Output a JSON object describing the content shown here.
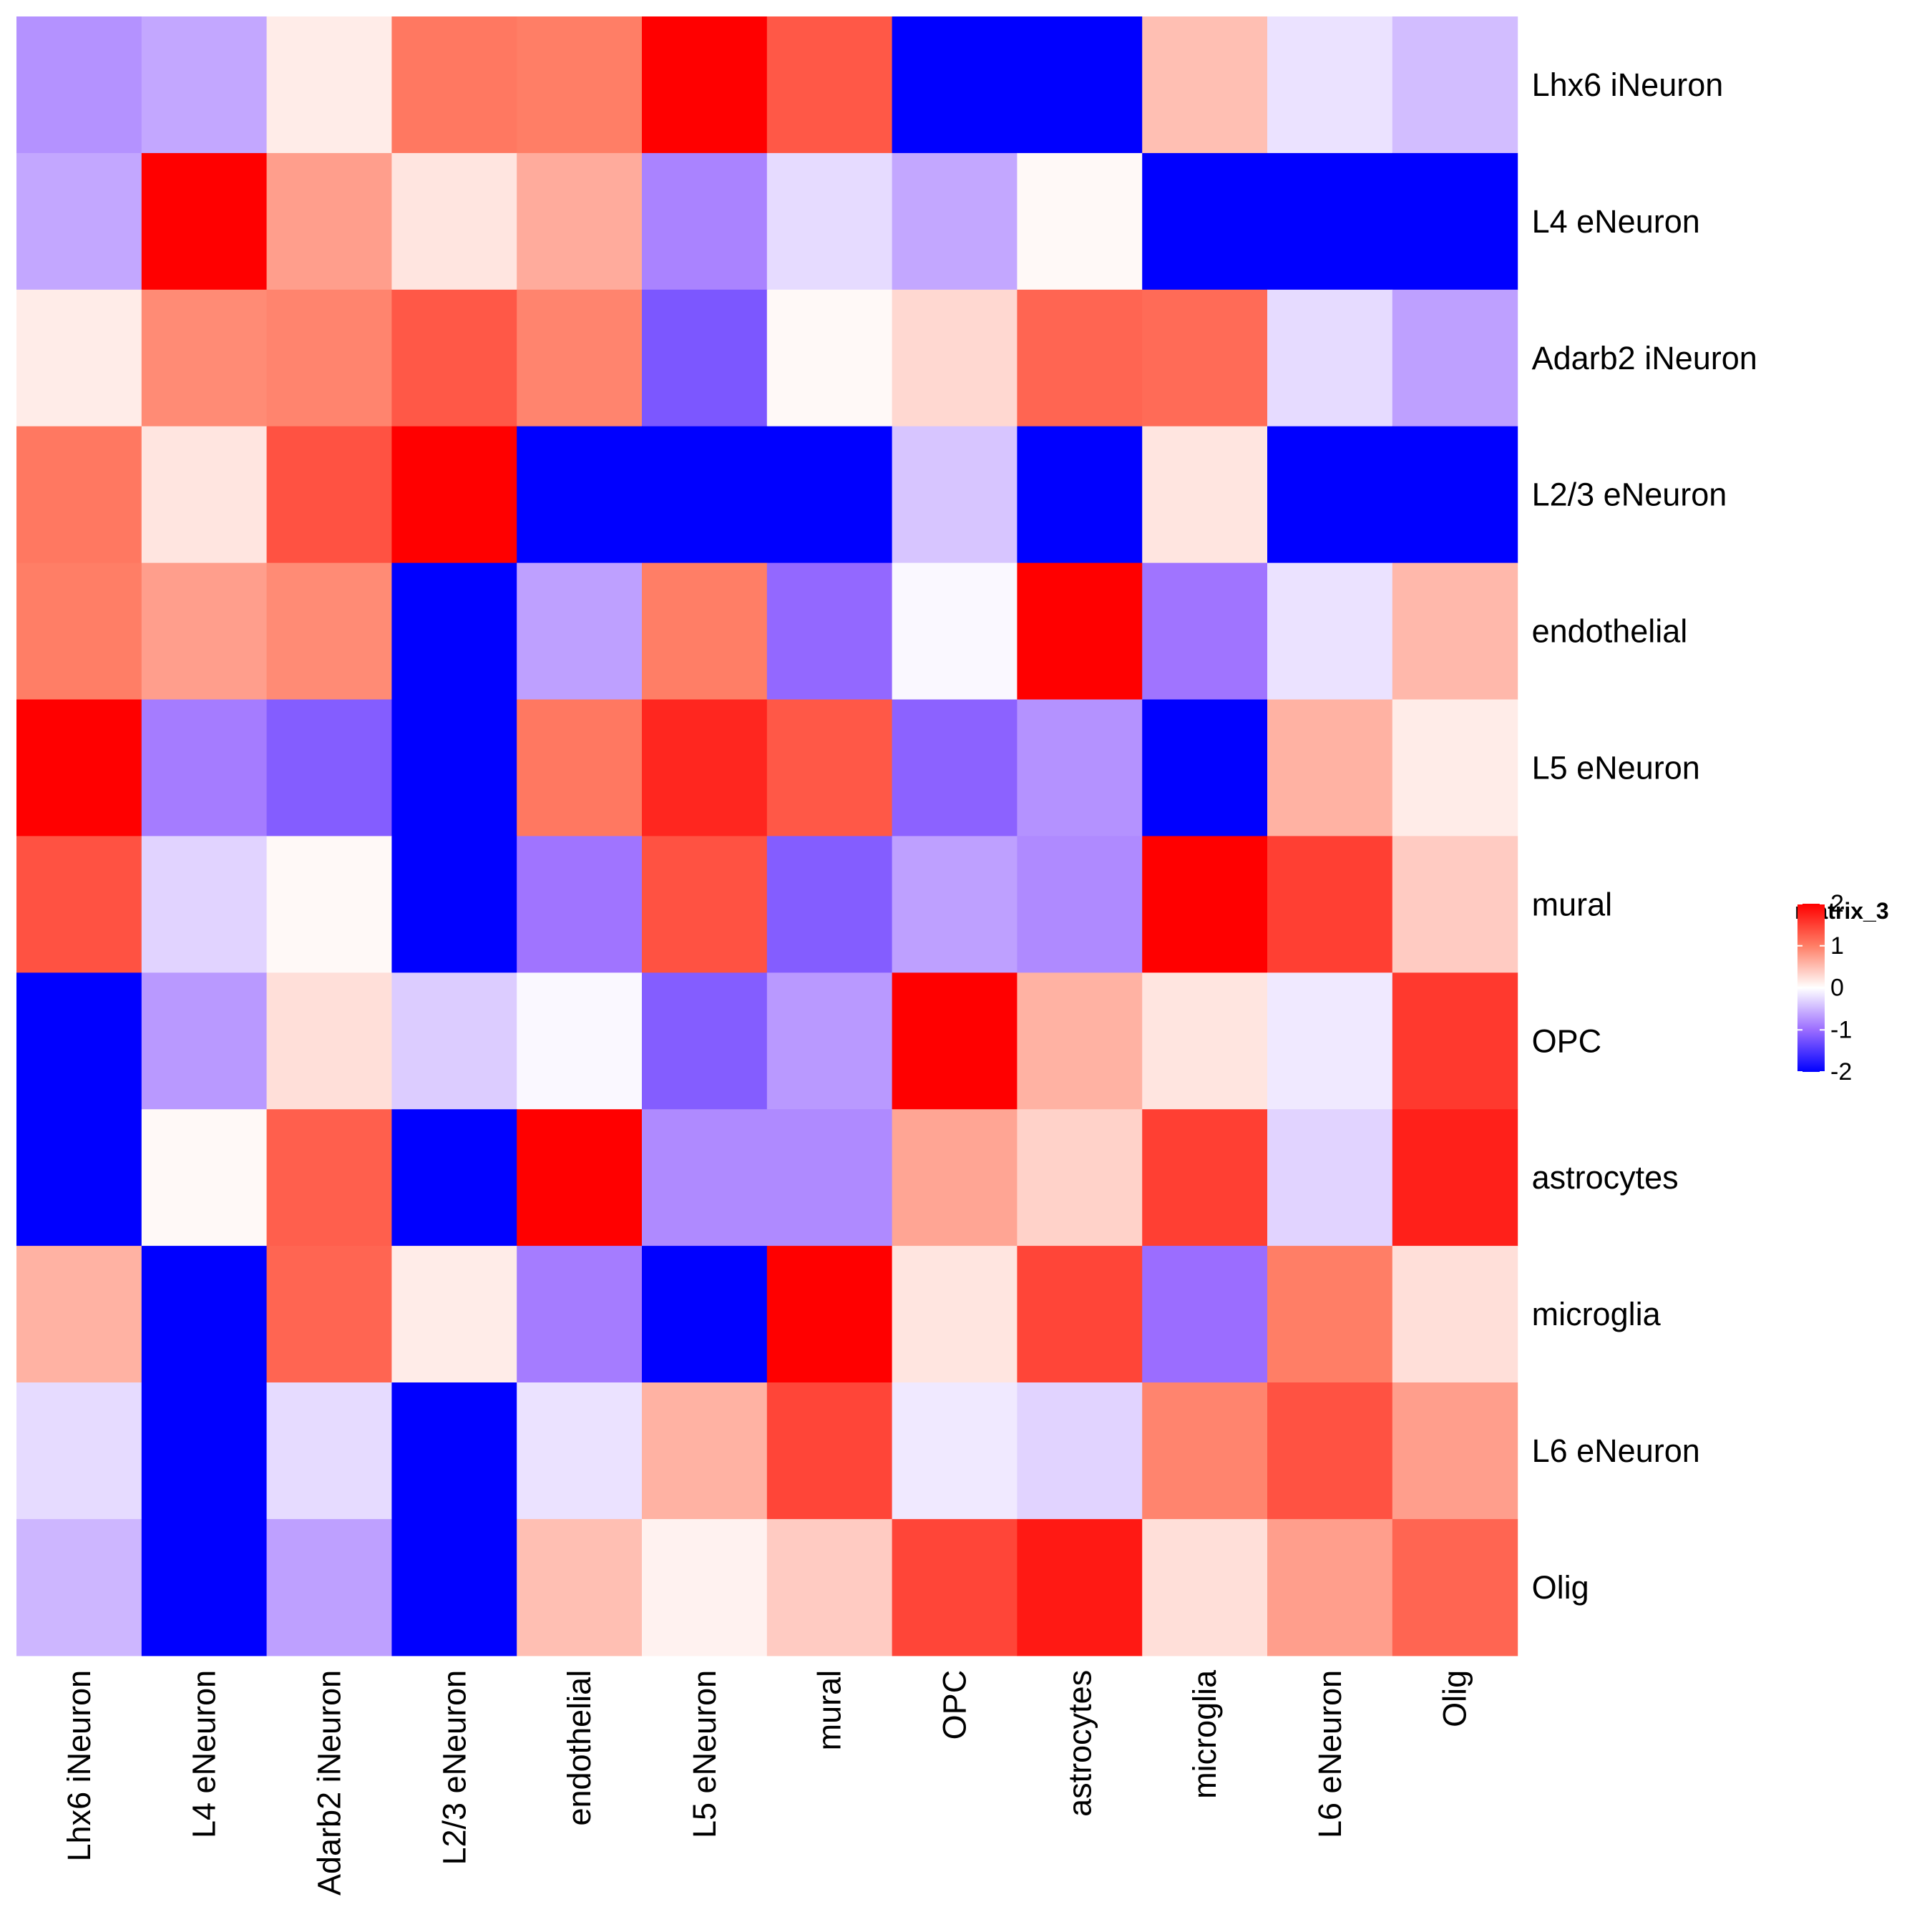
{
  "chart_data": {
    "type": "heatmap",
    "rows": [
      "Lhx6 iNeuron",
      "L4 eNeuron",
      "Adarb2 iNeuron",
      "L2/3 eNeuron",
      "endothelial",
      "L5 eNeuron",
      "mural",
      "OPC",
      "astrocytes",
      "microglia",
      "L6 eNeuron",
      "Olig"
    ],
    "columns": [
      "Lhx6 iNeuron",
      "L4 eNeuron",
      "Adarb2 iNeuron",
      "L2/3 eNeuron",
      "endothelial",
      "L5 eNeuron",
      "mural",
      "OPC",
      "astrocytes",
      "microglia",
      "L6 eNeuron",
      "Olig"
    ],
    "values": [
      [
        -0.75,
        -0.6,
        0.15,
        1.05,
        1.0,
        2.0,
        1.3,
        -2.0,
        -2.0,
        0.5,
        -0.2,
        -0.45
      ],
      [
        -0.6,
        2.0,
        0.75,
        0.2,
        0.65,
        -0.85,
        -0.25,
        -0.6,
        0.05,
        -2.0,
        -2.0,
        -2.0
      ],
      [
        0.15,
        0.9,
        0.95,
        1.3,
        0.95,
        -1.2,
        0.05,
        0.3,
        1.2,
        1.15,
        -0.25,
        -0.65
      ],
      [
        1.05,
        0.2,
        1.35,
        2.0,
        -2.0,
        -2.0,
        -2.0,
        -0.4,
        -2.0,
        0.2,
        -2.0,
        -2.0
      ],
      [
        1.0,
        0.75,
        0.9,
        -2.0,
        -0.65,
        1.0,
        -1.05,
        -0.05,
        2.0,
        -0.95,
        -0.2,
        0.55
      ],
      [
        2.0,
        -0.9,
        -1.15,
        -2.0,
        1.05,
        1.7,
        1.3,
        -1.1,
        -0.75,
        -2.0,
        0.6,
        0.15
      ],
      [
        1.35,
        -0.3,
        0.05,
        -2.0,
        -0.95,
        1.35,
        -1.15,
        -0.65,
        -0.8,
        2.0,
        1.5,
        0.4
      ],
      [
        -2.0,
        -0.7,
        0.25,
        -0.35,
        -0.05,
        -1.15,
        -0.7,
        2.0,
        0.6,
        0.2,
        -0.15,
        1.55
      ],
      [
        -2.0,
        0.05,
        1.25,
        -2.0,
        2.0,
        -0.8,
        -0.8,
        0.7,
        0.35,
        1.5,
        -0.3,
        1.75
      ],
      [
        0.6,
        -2.0,
        1.2,
        0.15,
        -0.9,
        -2.0,
        2.0,
        0.2,
        1.45,
        -1.0,
        1.0,
        0.25
      ],
      [
        -0.25,
        -2.0,
        -0.25,
        -2.0,
        -0.2,
        0.6,
        1.45,
        -0.15,
        -0.3,
        0.95,
        1.35,
        0.75
      ],
      [
        -0.5,
        -2.0,
        -0.65,
        -2.0,
        0.5,
        0.1,
        0.4,
        1.45,
        1.8,
        0.25,
        0.75,
        1.2
      ]
    ],
    "color_scale": {
      "min": -2,
      "max": 2,
      "low": "#0000ff",
      "mid": "#ffffff",
      "high": "#ff0000",
      "low_mid": "#9b6dff",
      "high_mid": "#ff7e66"
    },
    "legend": {
      "title": "matrix_3",
      "ticks": [
        "2",
        "1",
        "0",
        "-1",
        "-2"
      ],
      "tick_values": [
        2,
        1,
        0,
        -1,
        -2
      ],
      "placement": "right"
    }
  }
}
